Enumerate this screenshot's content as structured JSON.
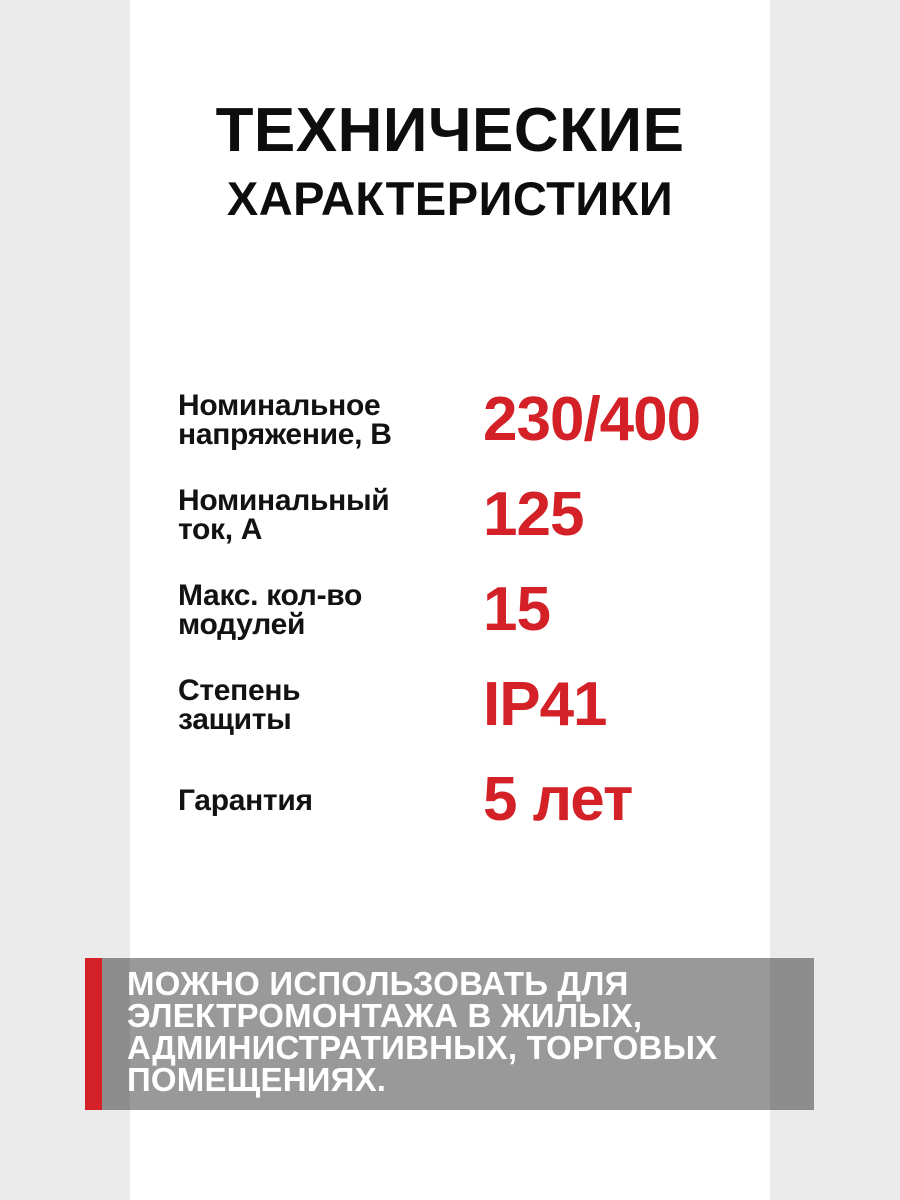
{
  "colors": {
    "page_bg": "#ebebeb",
    "card_bg": "#ffffff",
    "accent_red": "#d32127",
    "text_black": "#121212",
    "band_overlay": "rgba(0,0,0,0.4)",
    "band_text": "#ffffff"
  },
  "title": {
    "line1": "ТЕХНИЧЕСКИЕ",
    "line2": "ХАРАКТЕРИСТИКИ"
  },
  "specs": [
    {
      "label": "Номинальное\nнапряжение, В",
      "value": "230/400"
    },
    {
      "label": "Номинальный\nток, А",
      "value": "125"
    },
    {
      "label": "Макс. кол-во\nмодулей",
      "value": "15"
    },
    {
      "label": "Степень\nзащиты",
      "value": "IP41"
    },
    {
      "label": "Гарантия",
      "value": "5 лет"
    }
  ],
  "footer_note": {
    "text": "МОЖНО ИСПОЛЬЗОВАТЬ ДЛЯ\nЭЛЕКТРОМОНТАЖА В ЖИЛЫХ,\nАДМИНИСТРАТИВНЫХ, ТОРГОВЫХ\nПОМЕЩЕНИЯХ."
  }
}
